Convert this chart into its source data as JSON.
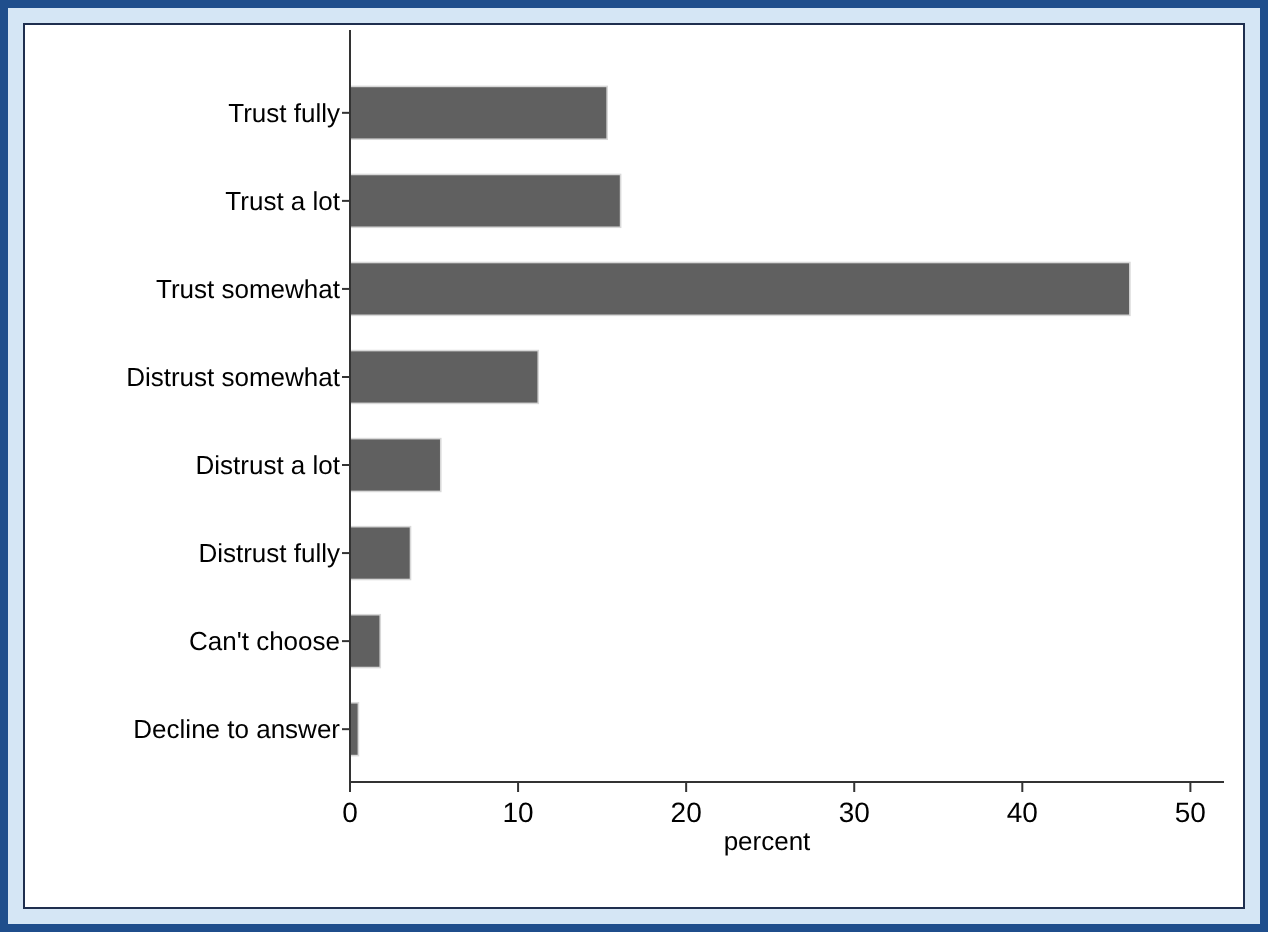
{
  "chart_data": {
    "type": "bar",
    "orientation": "horizontal",
    "xlabel": "percent",
    "categories": [
      "Trust fully",
      "Trust a lot",
      "Trust somewhat",
      "Distrust somewhat",
      "Distrust a lot",
      "Distrust fully",
      "Can't choose",
      "Decline to answer"
    ],
    "values": [
      15.3,
      16.1,
      46.4,
      11.2,
      5.4,
      3.6,
      1.8,
      0.5
    ],
    "color": "#606060",
    "xlim": [
      0,
      52
    ],
    "xticks": [
      0,
      10,
      20,
      30,
      40,
      50
    ],
    "grid": false
  }
}
